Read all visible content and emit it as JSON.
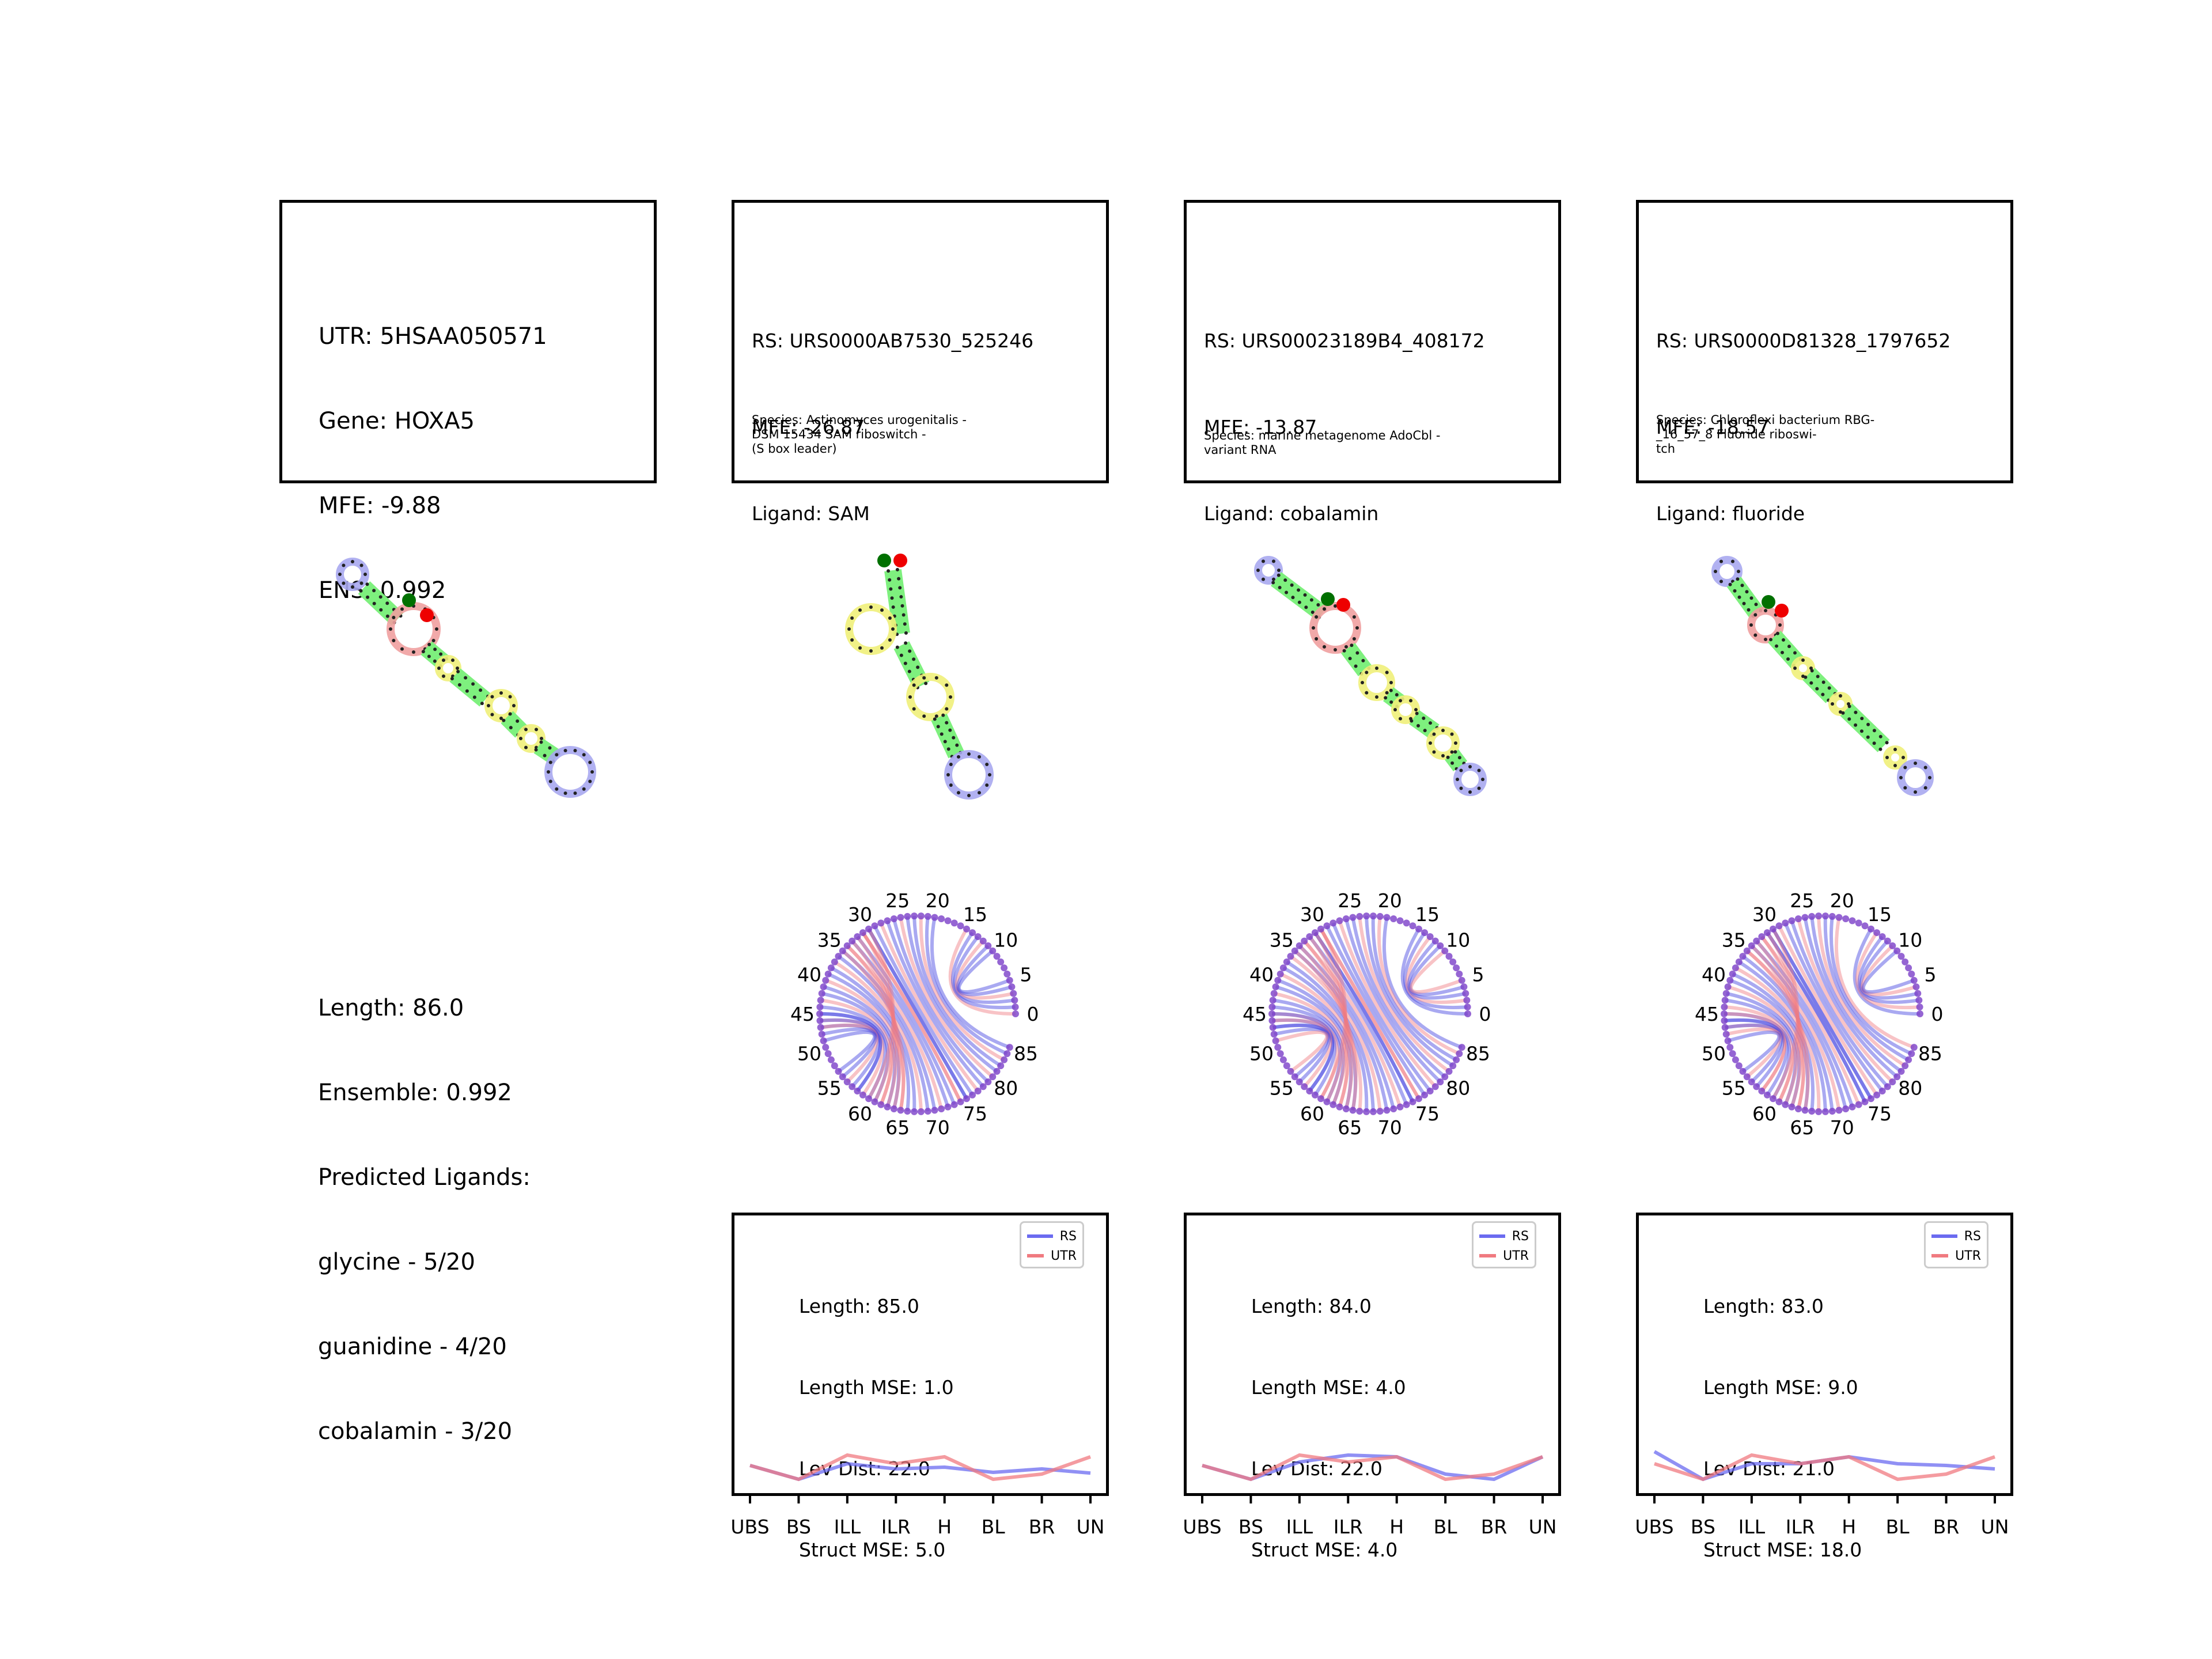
{
  "utr": {
    "lines": [
      "UTR: 5HSAA050571",
      "Gene: HOXA5",
      "MFE: -9.88",
      "ENS: 0.992"
    ],
    "summary": [
      "Length: 86.0",
      "Ensemble: 0.992",
      "Predicted Ligands:",
      "glycine - 5/20",
      "guanidine - 4/20",
      "cobalamin - 3/20"
    ]
  },
  "riboswitches": [
    {
      "rs_line": "RS: URS0000AB7530_525246",
      "mfe_line": "MFE: -26.87",
      "ligand_line": "Ligand: SAM",
      "species_lines": [
        "Species: Actinomyces urogenitalis -",
        "DSM 15434 SAM riboswitch -",
        "(S box leader)"
      ],
      "stats": [
        "Length: 85.0",
        "Length MSE: 1.0",
        "Lev Dist: 22.0",
        "Struct MSE: 5.0"
      ]
    },
    {
      "rs_line": "RS: URS00023189B4_408172",
      "mfe_line": "MFE: -13.87",
      "ligand_line": "Ligand: cobalamin",
      "species_lines": [
        "Species: marine metagenome AdoCbl -",
        "variant RNA"
      ],
      "stats": [
        "Length: 84.0",
        "Length MSE: 4.0",
        "Lev Dist: 22.0",
        "Struct MSE: 4.0"
      ]
    },
    {
      "rs_line": "RS: URS0000D81328_1797652",
      "mfe_line": "MFE: -18.57",
      "ligand_line": "Ligand: fluoride",
      "species_lines": [
        "Species: Chloroflexi bacterium RBG-",
        "_16_57_8 Fluoride riboswi-",
        "tch"
      ],
      "stats": [
        "Length: 83.0",
        "Length MSE: 9.0",
        "Lev Dist: 21.0",
        "Struct MSE: 18.0"
      ]
    }
  ],
  "legend": {
    "rs": "RS",
    "utr": "UTR"
  },
  "colors": {
    "rs": "#6b6bf0",
    "utr": "#f07a80",
    "stem": "#7ef07e",
    "hairpin": "#a9a9ef",
    "bulge": "#f0a0a0",
    "interior": "#f0f07a",
    "start": "#007000",
    "end": "#ee0000",
    "node": "#7a3fc8"
  },
  "chart_data": [
    {
      "type": "line",
      "categories": [
        "UBS",
        "BS",
        "ILL",
        "ILR",
        "H",
        "BL",
        "BR",
        "UN"
      ],
      "series": [
        {
          "name": "RS",
          "values": [
            0.55,
            0.15,
            0.6,
            0.45,
            0.5,
            0.35,
            0.45,
            0.33
          ]
        },
        {
          "name": "UTR",
          "values": [
            0.55,
            0.15,
            0.85,
            0.6,
            0.8,
            0.15,
            0.3,
            0.8
          ]
        }
      ]
    },
    {
      "type": "line",
      "categories": [
        "UBS",
        "BS",
        "ILL",
        "ILR",
        "H",
        "BL",
        "BR",
        "UN"
      ],
      "series": [
        {
          "name": "RS",
          "values": [
            0.55,
            0.15,
            0.65,
            0.85,
            0.8,
            0.3,
            0.15,
            0.8
          ]
        },
        {
          "name": "UTR",
          "values": [
            0.55,
            0.15,
            0.85,
            0.65,
            0.8,
            0.15,
            0.3,
            0.8
          ]
        }
      ]
    },
    {
      "type": "line",
      "categories": [
        "UBS",
        "BS",
        "ILL",
        "ILR",
        "H",
        "BL",
        "BR",
        "UN"
      ],
      "series": [
        {
          "name": "RS",
          "values": [
            0.95,
            0.15,
            0.6,
            0.6,
            0.8,
            0.6,
            0.55,
            0.45
          ]
        },
        {
          "name": "UTR",
          "values": [
            0.6,
            0.15,
            0.85,
            0.6,
            0.8,
            0.15,
            0.3,
            0.8
          ]
        }
      ]
    }
  ],
  "arc_ticks": [
    "0",
    "5",
    "10",
    "15",
    "20",
    "25",
    "30",
    "35",
    "40",
    "45",
    "50",
    "55",
    "60",
    "65",
    "70",
    "75",
    "80",
    "85"
  ]
}
